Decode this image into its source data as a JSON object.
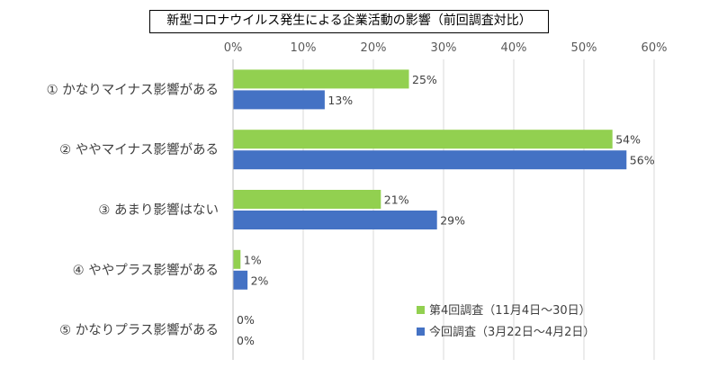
{
  "chart_data": {
    "type": "bar",
    "orientation": "horizontal",
    "title": "新型コロナウイルス発生による企業活動の影響（前回調査対比）",
    "categories": [
      "① かなりマイナス影響がある",
      "② ややマイナス影響がある",
      "③ あまり影響はない",
      "④ ややプラス影響がある",
      "⑤ かなりプラス影響がある"
    ],
    "series": [
      {
        "name": "第4回調査（11月4日〜30日）",
        "color": "#92d050",
        "values": [
          25,
          54,
          21,
          1,
          0
        ]
      },
      {
        "name": "今回調査（3月22日〜4月2日）",
        "color": "#4472c4",
        "values": [
          13,
          56,
          29,
          2,
          0
        ]
      }
    ],
    "xlim": [
      0,
      60
    ],
    "x_ticks": [
      "0%",
      "10%",
      "20%",
      "30%",
      "40%",
      "50%",
      "60%"
    ],
    "x_axis_position": "top",
    "value_suffix": "%",
    "grid": true,
    "legend_position": "bottom-right"
  }
}
